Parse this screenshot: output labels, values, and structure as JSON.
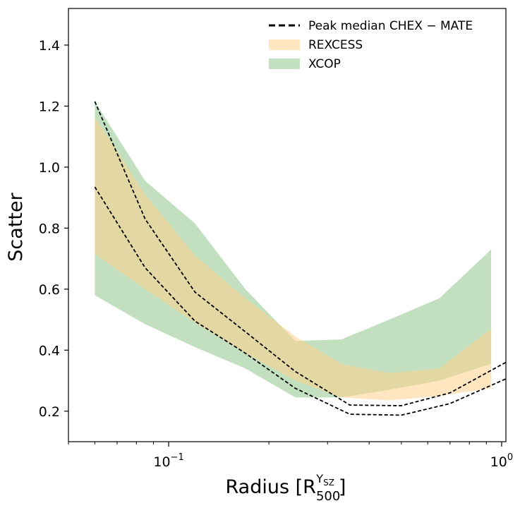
{
  "chart_data": {
    "type": "area",
    "xscale": "log",
    "xlim": [
      0.05,
      1.03
    ],
    "ylim": [
      0.1,
      1.52
    ],
    "xlabel": {
      "main": "Radius [R",
      "sub": "500",
      "sup_base": "Y",
      "sup_sub": "SZ",
      "close": "]"
    },
    "ylabel": "Scatter",
    "yticks": [
      0.2,
      0.4,
      0.6,
      0.8,
      1.0,
      1.2,
      1.4
    ],
    "ytick_labels": [
      "0.2",
      "0.4",
      "0.6",
      "0.8",
      "1.0",
      "1.2",
      "1.4"
    ],
    "xticks": [
      {
        "value": 0.1,
        "base": "10",
        "exp": "−1"
      },
      {
        "value": 1.0,
        "base": "10",
        "exp": "0"
      }
    ],
    "legend_position": "top-right",
    "series": [
      {
        "name": "XCOP",
        "kind": "band",
        "color": "#8fc78a",
        "x": [
          0.06,
          0.085,
          0.12,
          0.17,
          0.24,
          0.33,
          0.46,
          0.65,
          0.93
        ],
        "lower": [
          0.58,
          0.485,
          0.41,
          0.34,
          0.245,
          0.245,
          0.27,
          0.3,
          0.355
        ],
        "upper": [
          1.215,
          0.955,
          0.815,
          0.6,
          0.43,
          0.435,
          0.5,
          0.57,
          0.73
        ]
      },
      {
        "name": "REXCESS",
        "kind": "band",
        "color": "#ffd28c",
        "x": [
          0.06,
          0.085,
          0.12,
          0.17,
          0.24,
          0.33,
          0.46,
          0.65,
          0.93
        ],
        "lower": [
          0.715,
          0.6,
          0.49,
          0.39,
          0.3,
          0.245,
          0.235,
          0.25,
          0.275
        ],
        "upper": [
          1.165,
          0.91,
          0.71,
          0.57,
          0.445,
          0.355,
          0.325,
          0.34,
          0.47
        ]
      },
      {
        "name": "Peak median CHEX − MATE",
        "kind": "dashed-line",
        "color": "#000000",
        "x": [
          0.06,
          0.085,
          0.12,
          0.17,
          0.24,
          0.35,
          0.5,
          0.7,
          1.05
        ],
        "upper": [
          1.215,
          0.83,
          0.59,
          0.46,
          0.33,
          0.22,
          0.218,
          0.26,
          0.365
        ],
        "lower": [
          0.935,
          0.67,
          0.495,
          0.39,
          0.275,
          0.19,
          0.187,
          0.225,
          0.31
        ]
      }
    ]
  }
}
